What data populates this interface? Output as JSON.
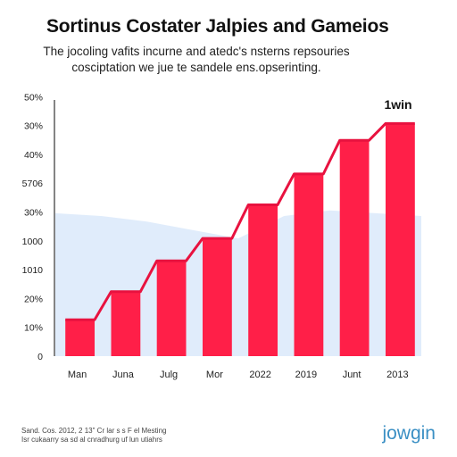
{
  "header": {
    "title": "Sortinus Costater Jalpies and Gameios",
    "subtitle_line1": "The jocoling vafits incurne and atedc's nsterns repsouries",
    "subtitle_line2": "cosciptation we jue te sandele ens.opserinting."
  },
  "chart_data": {
    "type": "bar",
    "title": "Sortinus Costater Jalpies and Gameios",
    "xlabel": "",
    "ylabel": "",
    "categories": [
      "Man",
      "Juna",
      "Julg",
      "Mor",
      "2022",
      "2019",
      "Junt",
      "2013"
    ],
    "y_tick_labels": [
      "0",
      "10%",
      "20%",
      "1010",
      "1000",
      "30%",
      "5706",
      "40%",
      "30%",
      "50%"
    ],
    "values": [
      1.3,
      2.3,
      3.4,
      4.2,
      5.4,
      6.5,
      7.7,
      8.3
    ],
    "line_values": [
      1.3,
      2.3,
      3.4,
      4.2,
      5.4,
      6.5,
      7.7,
      8.3
    ],
    "background_area": [
      5.1,
      5.0,
      4.8,
      4.5,
      4.2,
      5.0,
      5.2,
      5.1,
      5.0
    ],
    "ylim": [
      0,
      9.3
    ],
    "grid": false,
    "legend": "none",
    "annotation": "1win",
    "colors": {
      "bar": "#ff1f48",
      "line": "#e8123f",
      "area": "#c6dcf7"
    }
  },
  "footer": {
    "source_line1": "Sand. Cos. 2012, 2 13\" Cr lar s s F el Mesting",
    "source_line2": "Isr cukaarry sa sd al cnradhurg uf lun utiahrs",
    "brand": "jowgin"
  }
}
